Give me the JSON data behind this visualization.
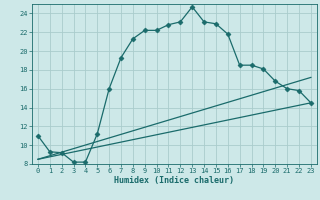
{
  "xlabel": "Humidex (Indice chaleur)",
  "bg_color": "#cde8e8",
  "grid_color": "#aacccc",
  "line_color": "#1a6b6b",
  "xlim": [
    -0.5,
    23.5
  ],
  "ylim": [
    8,
    25
  ],
  "xticks": [
    0,
    1,
    2,
    3,
    4,
    5,
    6,
    7,
    8,
    9,
    10,
    11,
    12,
    13,
    14,
    15,
    16,
    17,
    18,
    19,
    20,
    21,
    22,
    23
  ],
  "yticks": [
    8,
    10,
    12,
    14,
    16,
    18,
    20,
    22,
    24
  ],
  "series1_x": [
    0,
    1,
    2,
    3,
    4,
    5,
    6,
    7,
    8,
    9,
    10,
    11,
    12,
    13,
    14,
    15,
    16,
    17,
    18,
    19,
    20,
    21,
    22,
    23
  ],
  "series1_y": [
    11.0,
    9.3,
    9.2,
    8.2,
    8.2,
    11.2,
    16.0,
    19.3,
    21.3,
    22.2,
    22.2,
    22.8,
    23.1,
    24.7,
    23.1,
    22.9,
    21.8,
    18.5,
    18.5,
    18.1,
    16.8,
    16.0,
    15.8,
    14.5
  ],
  "series2_x": [
    0,
    23
  ],
  "series2_y": [
    8.5,
    14.5
  ],
  "series3_x": [
    0,
    23
  ],
  "series3_y": [
    8.5,
    17.2
  ],
  "tick_fontsize": 5.0,
  "xlabel_fontsize": 6.0
}
